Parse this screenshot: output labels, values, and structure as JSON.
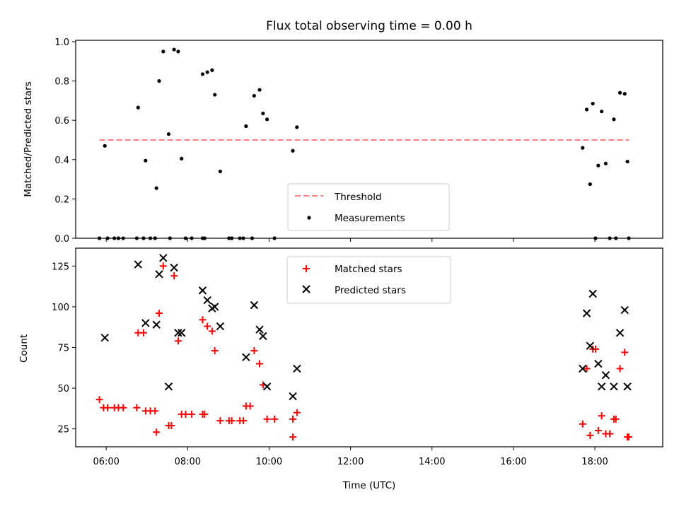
{
  "title": "Flux total observing time = 0.00 h",
  "colors": {
    "threshold": "#ff7f7f",
    "measurement": "#000000",
    "matched": "#ff0000",
    "predicted": "#000000"
  },
  "chart_data": [
    {
      "type": "scatter",
      "panel": "top",
      "ylabel": "Matched/Predicted stars",
      "xlabel": "",
      "ylim": [
        0,
        1.0
      ],
      "yticks": [
        "0.0",
        "0.2",
        "0.4",
        "0.6",
        "0.8",
        "1.0"
      ],
      "threshold": {
        "name": "Threshold",
        "y": 0.5,
        "x_range": [
          "05:50",
          "18:50"
        ]
      },
      "series": [
        {
          "name": "Measurements",
          "points": [
            [
              "05:50",
              0
            ],
            [
              "05:58",
              0.47
            ],
            [
              "06:02",
              0
            ],
            [
              "06:12",
              0
            ],
            [
              "06:18",
              0
            ],
            [
              "06:25",
              0
            ],
            [
              "06:45",
              0
            ],
            [
              "06:47",
              0.665
            ],
            [
              "06:55",
              0
            ],
            [
              "06:58",
              0.395
            ],
            [
              "07:05",
              0
            ],
            [
              "07:12",
              0
            ],
            [
              "07:14",
              0.255
            ],
            [
              "07:18",
              0.8
            ],
            [
              "07:24",
              0.95
            ],
            [
              "07:32",
              0.53
            ],
            [
              "07:34",
              0
            ],
            [
              "07:40",
              0.96
            ],
            [
              "07:46",
              0.95
            ],
            [
              "07:51",
              0.405
            ],
            [
              "07:57",
              0
            ],
            [
              "08:06",
              0
            ],
            [
              "08:22",
              0
            ],
            [
              "08:25",
              0
            ],
            [
              "08:22",
              0.835
            ],
            [
              "08:29",
              0.845
            ],
            [
              "08:36",
              0.855
            ],
            [
              "08:40",
              0.73
            ],
            [
              "08:48",
              0.34
            ],
            [
              "09:01",
              0
            ],
            [
              "09:05",
              0
            ],
            [
              "09:17",
              0
            ],
            [
              "09:22",
              0
            ],
            [
              "09:26",
              0.57
            ],
            [
              "09:35",
              0
            ],
            [
              "09:38",
              0.725
            ],
            [
              "09:46",
              0.755
            ],
            [
              "09:51",
              0.635
            ],
            [
              "09:57",
              0.605
            ],
            [
              "10:08",
              0
            ],
            [
              "10:35",
              0.445
            ],
            [
              "10:41",
              0.565
            ],
            [
              "17:42",
              0.46
            ],
            [
              "17:48",
              0.655
            ],
            [
              "17:53",
              0.275
            ],
            [
              "17:57",
              0.685
            ],
            [
              "18:01",
              0
            ],
            [
              "18:05",
              0.37
            ],
            [
              "18:10",
              0.645
            ],
            [
              "18:16",
              0.38
            ],
            [
              "18:22",
              0
            ],
            [
              "18:28",
              0.605
            ],
            [
              "18:31",
              0
            ],
            [
              "18:37",
              0.74
            ],
            [
              "18:44",
              0.735
            ],
            [
              "18:48",
              0.39
            ],
            [
              "18:50",
              0
            ]
          ]
        }
      ],
      "legend": [
        "Threshold",
        "Measurements"
      ],
      "legend_placement": "lower-center"
    },
    {
      "type": "scatter",
      "panel": "bottom",
      "ylabel": "Count",
      "xlabel": "Time (UTC)",
      "ylim": [
        14,
        136
      ],
      "yticks": [
        "25",
        "50",
        "75",
        "100",
        "125"
      ],
      "xticks": [
        "06:00",
        "08:00",
        "10:00",
        "12:00",
        "14:00",
        "16:00",
        "18:00"
      ],
      "xlim": [
        "05:15",
        "19:40"
      ],
      "series": [
        {
          "name": "Matched stars",
          "points": [
            [
              "05:50",
              43
            ],
            [
              "05:56",
              38
            ],
            [
              "06:02",
              38
            ],
            [
              "06:12",
              38
            ],
            [
              "06:18",
              38
            ],
            [
              "06:25",
              38
            ],
            [
              "06:45",
              38
            ],
            [
              "06:47",
              84
            ],
            [
              "06:55",
              84
            ],
            [
              "06:58",
              36
            ],
            [
              "07:05",
              36
            ],
            [
              "07:12",
              36
            ],
            [
              "07:14",
              23
            ],
            [
              "07:18",
              96
            ],
            [
              "07:24",
              125
            ],
            [
              "07:32",
              27
            ],
            [
              "07:36",
              27
            ],
            [
              "07:40",
              119
            ],
            [
              "07:46",
              79
            ],
            [
              "07:51",
              34
            ],
            [
              "07:57",
              34
            ],
            [
              "08:06",
              34
            ],
            [
              "08:22",
              34
            ],
            [
              "08:25",
              34
            ],
            [
              "08:22",
              92
            ],
            [
              "08:29",
              88
            ],
            [
              "08:36",
              85
            ],
            [
              "08:40",
              73
            ],
            [
              "08:48",
              30
            ],
            [
              "09:01",
              30
            ],
            [
              "09:05",
              30
            ],
            [
              "09:17",
              30
            ],
            [
              "09:22",
              30
            ],
            [
              "09:26",
              39
            ],
            [
              "09:32",
              39
            ],
            [
              "09:38",
              73
            ],
            [
              "09:46",
              65
            ],
            [
              "09:51",
              52
            ],
            [
              "09:57",
              31
            ],
            [
              "10:08",
              31
            ],
            [
              "10:35",
              31
            ],
            [
              "10:35",
              20
            ],
            [
              "10:41",
              35
            ],
            [
              "17:42",
              28
            ],
            [
              "17:48",
              62
            ],
            [
              "17:53",
              21
            ],
            [
              "17:57",
              74
            ],
            [
              "18:01",
              74
            ],
            [
              "18:05",
              24
            ],
            [
              "18:10",
              33
            ],
            [
              "18:16",
              22
            ],
            [
              "18:22",
              22
            ],
            [
              "18:28",
              31
            ],
            [
              "18:31",
              31
            ],
            [
              "18:37",
              62
            ],
            [
              "18:44",
              72
            ],
            [
              "18:48",
              20
            ],
            [
              "18:50",
              20
            ]
          ]
        },
        {
          "name": "Predicted stars",
          "points": [
            [
              "05:58",
              81
            ],
            [
              "06:47",
              126
            ],
            [
              "06:58",
              90
            ],
            [
              "07:14",
              89
            ],
            [
              "07:18",
              120
            ],
            [
              "07:24",
              130
            ],
            [
              "07:32",
              51
            ],
            [
              "07:40",
              124
            ],
            [
              "07:46",
              84
            ],
            [
              "07:51",
              84
            ],
            [
              "08:22",
              110
            ],
            [
              "08:29",
              104
            ],
            [
              "08:36",
              99
            ],
            [
              "08:40",
              100
            ],
            [
              "08:48",
              88
            ],
            [
              "09:26",
              69
            ],
            [
              "09:38",
              101
            ],
            [
              "09:46",
              86
            ],
            [
              "09:51",
              82
            ],
            [
              "09:57",
              51
            ],
            [
              "10:35",
              45
            ],
            [
              "10:41",
              62
            ],
            [
              "17:42",
              62
            ],
            [
              "17:48",
              96
            ],
            [
              "17:53",
              76
            ],
            [
              "17:57",
              108
            ],
            [
              "18:05",
              65
            ],
            [
              "18:10",
              51
            ],
            [
              "18:16",
              58
            ],
            [
              "18:28",
              51
            ],
            [
              "18:37",
              84
            ],
            [
              "18:44",
              98
            ],
            [
              "18:48",
              51
            ]
          ]
        }
      ],
      "legend": [
        "Matched stars",
        "Predicted stars"
      ],
      "legend_placement": "upper-center"
    }
  ]
}
